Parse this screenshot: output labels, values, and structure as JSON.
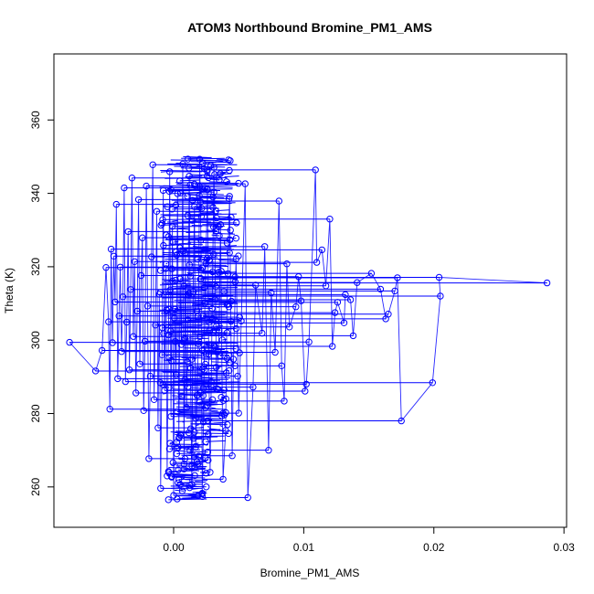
{
  "chart_data": {
    "type": "scatter",
    "title": "ATOM3 Northbound Bromine_PM1_AMS",
    "xlabel": "Bromine_PM1_AMS",
    "ylabel": "Theta (K)",
    "xlim": [
      -0.0092,
      0.0302
    ],
    "ylim": [
      249,
      378
    ],
    "x_ticks": [
      0.0,
      0.01,
      0.02,
      0.03
    ],
    "x_tick_labels": [
      "0.00",
      "0.01",
      "0.02",
      "0.03"
    ],
    "y_ticks": [
      260,
      280,
      300,
      320,
      340,
      360
    ],
    "y_tick_labels": [
      "260",
      "280",
      "300",
      "320",
      "340",
      "360"
    ],
    "grid": false,
    "legend": "none",
    "style": "points connected by lines (type='o')",
    "series": [
      {
        "color": "#0000ff",
        "marker": "open-circle",
        "points": [
          [
            0.0287,
            315.6
          ],
          [
            0.0204,
            317.1
          ],
          [
            0.0205,
            312.0
          ],
          [
            0.0199,
            288.4
          ],
          [
            0.0175,
            278.0
          ],
          [
            0.0172,
            317.0
          ],
          [
            0.017,
            313.4
          ],
          [
            0.0165,
            307.1
          ],
          [
            0.0163,
            305.8
          ],
          [
            0.0159,
            313.9
          ],
          [
            0.0152,
            318.2
          ],
          [
            0.0141,
            315.7
          ],
          [
            0.0138,
            301.2
          ],
          [
            0.0136,
            311.0
          ],
          [
            0.0132,
            312.4
          ],
          [
            0.0131,
            304.7
          ],
          [
            0.0126,
            310.3
          ],
          [
            0.0124,
            307.5
          ],
          [
            0.0122,
            298.3
          ],
          [
            0.012,
            333.0
          ],
          [
            0.0117,
            314.8
          ],
          [
            0.0114,
            324.6
          ],
          [
            0.011,
            321.2
          ],
          [
            0.0109,
            346.4
          ],
          [
            0.0104,
            299.5
          ],
          [
            0.0102,
            288.0
          ],
          [
            0.0101,
            286.1
          ],
          [
            0.0098,
            310.7
          ],
          [
            0.0096,
            317.3
          ],
          [
            0.0094,
            309.1
          ],
          [
            0.0089,
            303.6
          ],
          [
            0.0087,
            320.8
          ],
          [
            0.0085,
            283.4
          ],
          [
            0.0083,
            293.0
          ],
          [
            0.0081,
            337.9
          ],
          [
            0.0078,
            296.7
          ],
          [
            0.0075,
            312.9
          ],
          [
            0.0073,
            270.0
          ],
          [
            0.007,
            325.5
          ],
          [
            0.0068,
            301.9
          ],
          [
            0.0063,
            315.0
          ],
          [
            0.0061,
            287.2
          ],
          [
            0.0057,
            257.1
          ],
          [
            0.0055,
            342.6
          ],
          [
            0.0052,
            305.2
          ],
          [
            0.005,
            280.1
          ],
          [
            0.0048,
            322.1
          ],
          [
            0.0046,
            294.8
          ],
          [
            0.0045,
            268.5
          ],
          [
            0.0043,
            339.2
          ],
          [
            0.0041,
            309.7
          ],
          [
            0.004,
            275.4
          ],
          [
            0.0038,
            262.1
          ],
          [
            0.0036,
            331.5
          ],
          [
            0.0035,
            302.7
          ],
          [
            0.0033,
            286.8
          ],
          [
            0.0031,
            347.1
          ],
          [
            0.003,
            318.6
          ],
          [
            0.0028,
            264.0
          ],
          [
            0.0027,
            296.2
          ],
          [
            0.0026,
            341.0
          ],
          [
            0.0024,
            310.1
          ],
          [
            0.0023,
            277.7
          ],
          [
            0.0022,
            258.3
          ],
          [
            0.0021,
            327.3
          ],
          [
            0.002,
            349.3
          ],
          [
            0.0019,
            299.0
          ],
          [
            0.0018,
            284.9
          ],
          [
            0.0017,
            270.9
          ],
          [
            0.0016,
            336.4
          ],
          [
            0.0015,
            313.2
          ],
          [
            0.0014,
            260.7
          ],
          [
            0.0013,
            292.4
          ],
          [
            0.0012,
            344.7
          ],
          [
            0.0011,
            305.5
          ],
          [
            0.001,
            281.6
          ],
          [
            0.0009,
            323.8
          ],
          [
            0.0008,
            266.2
          ],
          [
            0.0007,
            348.0
          ],
          [
            0.0006,
            298.8
          ],
          [
            0.0005,
            316.7
          ],
          [
            0.0004,
            273.3
          ],
          [
            0.0003,
            339.9
          ],
          [
            0.0002,
            290.6
          ],
          [
            0.0001,
            308.4
          ],
          [
            0.0,
            257.7
          ],
          [
            -0.0001,
            331.0
          ],
          [
            -0.0002,
            279.2
          ],
          [
            -0.0003,
            345.9
          ],
          [
            -0.0004,
            301.4
          ],
          [
            -0.0005,
            263.0
          ],
          [
            -0.0006,
            319.5
          ],
          [
            -0.0007,
            286.3
          ],
          [
            -0.0008,
            340.8
          ],
          [
            -0.0009,
            296.0
          ],
          [
            -0.001,
            259.6
          ],
          [
            -0.0011,
            312.5
          ],
          [
            -0.0012,
            276.1
          ],
          [
            -0.0013,
            335.1
          ],
          [
            -0.0014,
            304.1
          ],
          [
            -0.0015,
            283.8
          ],
          [
            -0.0016,
            347.8
          ],
          [
            -0.0017,
            322.7
          ],
          [
            -0.0018,
            290.2
          ],
          [
            -0.0019,
            267.7
          ],
          [
            -0.002,
            309.3
          ],
          [
            -0.0021,
            342.0
          ],
          [
            -0.0022,
            299.7
          ],
          [
            -0.0023,
            280.8
          ],
          [
            -0.0024,
            327.9
          ],
          [
            -0.0025,
            317.6
          ],
          [
            -0.0026,
            293.5
          ],
          [
            -0.0027,
            338.3
          ],
          [
            -0.0028,
            307.9
          ],
          [
            -0.0029,
            285.6
          ],
          [
            -0.003,
            321.4
          ],
          [
            -0.0031,
            301.0
          ],
          [
            -0.0032,
            344.2
          ],
          [
            -0.0033,
            313.8
          ],
          [
            -0.0034,
            291.9
          ],
          [
            -0.0035,
            329.6
          ],
          [
            -0.0036,
            304.9
          ],
          [
            -0.0037,
            288.7
          ],
          [
            -0.0038,
            341.5
          ],
          [
            -0.0039,
            311.8
          ],
          [
            -0.004,
            296.9
          ],
          [
            -0.0041,
            319.9
          ],
          [
            -0.0042,
            306.6
          ],
          [
            -0.0043,
            289.5
          ],
          [
            -0.0044,
            337.0
          ],
          [
            -0.0045,
            310.4
          ],
          [
            -0.0046,
            322.9
          ],
          [
            -0.0047,
            299.3
          ],
          [
            -0.0048,
            324.8
          ],
          [
            -0.0049,
            281.2
          ],
          [
            -0.005,
            305.0
          ],
          [
            -0.0052,
            319.8
          ],
          [
            -0.0055,
            297.2
          ],
          [
            -0.006,
            291.6
          ],
          [
            -0.008,
            299.4
          ]
        ]
      }
    ]
  }
}
